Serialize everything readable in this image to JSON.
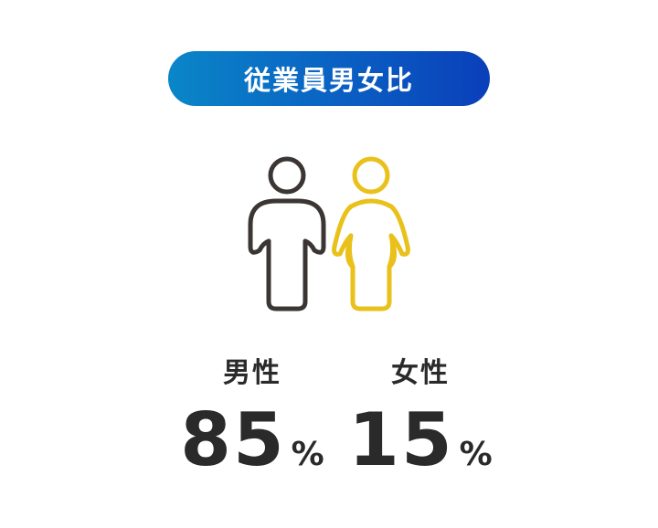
{
  "title": "従業員男女比",
  "colors": {
    "male_icon": "#3b3533",
    "female_icon": "#e9c11a",
    "pill_start": "#0a86c8",
    "pill_end": "#0a3fba"
  },
  "icons": {
    "male": "male-figure-icon",
    "female": "female-figure-icon"
  },
  "stats": {
    "male": {
      "label": "男性",
      "value": "85",
      "unit": "%"
    },
    "female": {
      "label": "女性",
      "value": "15",
      "unit": "%"
    }
  }
}
